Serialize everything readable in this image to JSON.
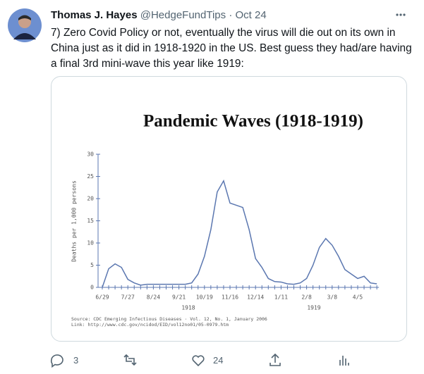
{
  "tweet": {
    "name": "Thomas J. Hayes",
    "handle": "@HedgeFundTips",
    "date": "· Oct 24",
    "text": "7) Zero Covid Policy or not, eventually the virus will die out on its own in China just as it did in 1918-1920 in the US.  Best guess they had/are having a final 3rd mini-wave this year like 1919:",
    "replies": "3",
    "likes": "24"
  },
  "chart_data": {
    "type": "line",
    "title": "Pandemic Waves (1918-1919)",
    "y_label": "Deaths per 1,000 persons",
    "color": "#5b77b0",
    "categories": [
      "6/29",
      null,
      null,
      null,
      "7/27",
      null,
      null,
      null,
      "8/24",
      null,
      null,
      null,
      "9/21",
      null,
      null,
      null,
      "10/19",
      null,
      null,
      null,
      "11/16",
      null,
      null,
      null,
      "12/14",
      null,
      null,
      null,
      "1/11",
      null,
      null,
      null,
      "2/8",
      null,
      null,
      null,
      "3/8",
      null,
      null,
      null,
      "4/5",
      null,
      null,
      null
    ],
    "values": [
      0,
      4.2,
      5.3,
      4.5,
      1.8,
      1,
      0.5,
      0.7,
      0.7,
      0.7,
      0.7,
      0.7,
      0.7,
      0.7,
      1,
      3,
      7,
      13,
      21.5,
      24,
      19,
      18.5,
      18,
      13,
      6.5,
      4.5,
      2,
      1.3,
      1.2,
      0.8,
      0.7,
      1,
      2,
      5,
      9,
      11,
      9.5,
      7,
      4,
      3,
      2,
      2.5,
      1,
      0.8
    ],
    "ylim": [
      0,
      30
    ],
    "yticks": [
      0,
      5,
      10,
      15,
      20,
      25,
      30
    ],
    "annotations": [
      "1918",
      "1919"
    ],
    "source": [
      "Source: CDC Emerging Infectious Diseases · Vol. 12, No. 1, January 2006",
      "Link: http://www.cdc.gov/ncidod/EID/vol12no01/05-0979.htm"
    ]
  }
}
